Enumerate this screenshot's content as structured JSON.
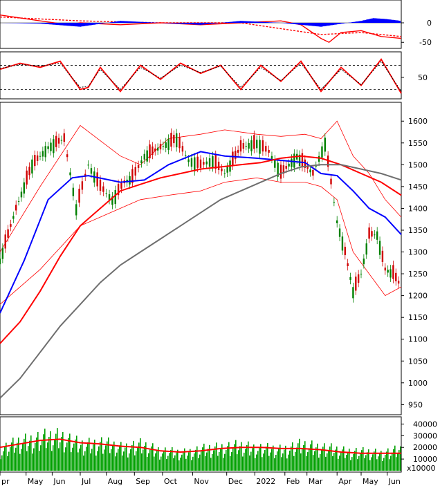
{
  "chart_data": [
    {
      "panel": "macd",
      "type": "line",
      "y_ticks": [
        "0",
        "-50"
      ],
      "series": [
        {
          "line": "macd",
          "color": "#ff0000",
          "x": [
            0,
            0.1,
            0.17,
            0.2,
            0.3,
            0.4,
            0.5,
            0.6,
            0.7,
            0.75,
            0.8,
            0.82,
            0.85,
            0.9,
            0.95,
            1.0
          ],
          "values": [
            20,
            5,
            -5,
            0,
            -5,
            0,
            -5,
            0,
            5,
            -5,
            -40,
            -50,
            -25,
            -20,
            -35,
            -40
          ]
        },
        {
          "line": "signal",
          "color": "#ff0000",
          "x": [
            0,
            0.2,
            0.4,
            0.6,
            0.8,
            0.9,
            1.0
          ],
          "values": [
            15,
            5,
            0,
            0,
            -30,
            -25,
            -35
          ]
        },
        {
          "line": "histogram",
          "color": "#0000ff",
          "x": [
            0,
            0.1,
            0.2,
            0.3,
            0.4,
            0.5,
            0.6,
            0.7,
            0.8,
            0.9,
            0.93,
            0.96,
            1.0
          ],
          "values": [
            0,
            -2,
            -10,
            5,
            0,
            -5,
            5,
            0,
            -10,
            5,
            12,
            10,
            5
          ]
        }
      ],
      "ylim": [
        -62,
        55
      ]
    },
    {
      "panel": "stochastic",
      "type": "line",
      "y_ticks": [
        "50"
      ],
      "reference_lines": [
        80,
        20
      ],
      "series": [
        {
          "line": "k",
          "color": "#ff0000",
          "x": [
            0,
            0.05,
            0.1,
            0.15,
            0.2,
            0.22,
            0.25,
            0.3,
            0.35,
            0.4,
            0.45,
            0.5,
            0.55,
            0.6,
            0.65,
            0.7,
            0.75,
            0.8,
            0.85,
            0.9,
            0.95,
            1.0
          ],
          "values": [
            70,
            85,
            75,
            90,
            20,
            25,
            75,
            15,
            80,
            45,
            85,
            60,
            80,
            20,
            80,
            40,
            90,
            15,
            75,
            30,
            95,
            10
          ]
        },
        {
          "line": "d",
          "color": "#000000",
          "x": [
            0,
            0.05,
            0.1,
            0.15,
            0.2,
            0.22,
            0.25,
            0.3,
            0.35,
            0.4,
            0.45,
            0.5,
            0.55,
            0.6,
            0.65,
            0.7,
            0.75,
            0.8,
            0.85,
            0.9,
            0.95,
            1.0
          ],
          "values": [
            72,
            82,
            78,
            85,
            25,
            28,
            70,
            20,
            75,
            48,
            80,
            62,
            78,
            25,
            75,
            42,
            85,
            20,
            70,
            32,
            90,
            15
          ]
        }
      ],
      "ylim": [
        0,
        110
      ]
    },
    {
      "panel": "price",
      "type": "candlestick",
      "y_ticks": [
        950,
        1000,
        1050,
        1100,
        1150,
        1200,
        1250,
        1300,
        1350,
        1400,
        1450,
        1500,
        1550,
        1600
      ],
      "ylim": [
        930,
        1640
      ],
      "x": [
        0,
        0.04,
        0.08,
        0.12,
        0.16,
        0.19,
        0.22,
        0.25,
        0.28,
        0.31,
        0.33,
        0.36,
        0.4,
        0.44,
        0.47,
        0.5,
        0.53,
        0.56,
        0.6,
        0.64,
        0.67,
        0.7,
        0.74,
        0.78,
        0.81,
        0.84,
        0.86,
        0.88,
        0.9,
        0.92,
        0.94,
        0.96,
        0.98,
        1.0
      ],
      "close": [
        1280,
        1400,
        1500,
        1540,
        1560,
        1400,
        1500,
        1450,
        1420,
        1460,
        1470,
        1520,
        1540,
        1560,
        1510,
        1500,
        1510,
        1480,
        1540,
        1550,
        1530,
        1480,
        1520,
        1480,
        1550,
        1370,
        1300,
        1210,
        1250,
        1340,
        1340,
        1260,
        1250,
        1220
      ],
      "series": [
        {
          "name": "",
          "color": "#0000ff",
          "x": [
            0,
            0.06,
            0.12,
            0.18,
            0.22,
            0.3,
            0.36,
            0.42,
            0.5,
            0.56,
            0.64,
            0.7,
            0.76,
            0.8,
            0.84,
            0.88,
            0.92,
            0.96,
            1.0
          ],
          "values": [
            1160,
            1280,
            1420,
            1470,
            1475,
            1460,
            1465,
            1500,
            1530,
            1520,
            1515,
            1510,
            1505,
            1480,
            1475,
            1440,
            1400,
            1380,
            1340
          ]
        },
        {
          "name": "",
          "color": "#ff0000",
          "x": [
            0,
            0.05,
            0.1,
            0.15,
            0.2,
            0.25,
            0.3,
            0.35,
            0.4,
            0.45,
            0.5,
            0.55,
            0.6,
            0.65,
            0.7,
            0.75,
            0.8,
            0.85,
            0.9,
            0.95,
            1.0
          ],
          "values": [
            1090,
            1140,
            1210,
            1290,
            1360,
            1400,
            1440,
            1455,
            1470,
            1480,
            1490,
            1495,
            1500,
            1505,
            1515,
            1520,
            1515,
            1500,
            1480,
            1460,
            1430
          ]
        },
        {
          "name": "",
          "color": "#6e6e6e",
          "x": [
            0,
            0.05,
            0.1,
            0.15,
            0.2,
            0.25,
            0.3,
            0.35,
            0.4,
            0.45,
            0.5,
            0.55,
            0.6,
            0.65,
            0.7,
            0.75,
            0.8,
            0.85,
            0.9,
            0.95,
            1.0
          ],
          "values": [
            965,
            1010,
            1070,
            1130,
            1180,
            1230,
            1270,
            1300,
            1330,
            1360,
            1390,
            1420,
            1440,
            1460,
            1480,
            1495,
            1500,
            1500,
            1490,
            1480,
            1465
          ]
        }
      ],
      "bands": {
        "color": "#ff0000",
        "x": [
          0,
          0.1,
          0.2,
          0.3,
          0.35,
          0.42,
          0.5,
          0.56,
          0.64,
          0.7,
          0.76,
          0.8,
          0.84,
          0.88,
          0.92,
          0.96,
          1.0
        ],
        "upper": [
          1300,
          1450,
          1590,
          1520,
          1500,
          1560,
          1570,
          1580,
          1570,
          1565,
          1570,
          1560,
          1600,
          1520,
          1480,
          1420,
          1380
        ],
        "lower": [
          1180,
          1260,
          1360,
          1400,
          1420,
          1430,
          1440,
          1460,
          1470,
          1460,
          1460,
          1450,
          1420,
          1300,
          1250,
          1200,
          1220
        ]
      }
    },
    {
      "panel": "volume",
      "type": "bar",
      "y_ticks": [
        "40000",
        "30000",
        "20000",
        "10000"
      ],
      "unit_label": "x10000",
      "ylim": [
        0,
        45000
      ],
      "x": [
        0,
        0.05,
        0.1,
        0.15,
        0.2,
        0.25,
        0.3,
        0.35,
        0.4,
        0.45,
        0.5,
        0.55,
        0.6,
        0.65,
        0.7,
        0.75,
        0.8,
        0.85,
        0.9,
        0.95,
        1.0
      ],
      "values": [
        18000,
        25000,
        28000,
        30000,
        22000,
        24000,
        20000,
        22000,
        17000,
        15000,
        18000,
        20000,
        21000,
        19000,
        18000,
        22000,
        20000,
        17000,
        16000,
        15000,
        18000
      ],
      "ma": [
        20000,
        23000,
        26000,
        27000,
        24000,
        23000,
        21000,
        20000,
        17000,
        16000,
        17000,
        19000,
        20000,
        20000,
        19000,
        19000,
        18000,
        16000,
        15000,
        15000,
        15000
      ],
      "bar_color": "#00a000",
      "ma_color": "#ff0000"
    }
  ],
  "x_axis": {
    "months": [
      "pr",
      "May",
      "Jun",
      "Jul",
      "Aug",
      "Sep",
      "Oct",
      "Nov",
      "Dec",
      "2022",
      "Feb",
      "Mar",
      "Apr",
      "May",
      "Jun"
    ],
    "month_pos": [
      0,
      0.065,
      0.13,
      0.2,
      0.265,
      0.335,
      0.405,
      0.48,
      0.565,
      0.635,
      0.71,
      0.765,
      0.84,
      0.9,
      0.965
    ]
  }
}
